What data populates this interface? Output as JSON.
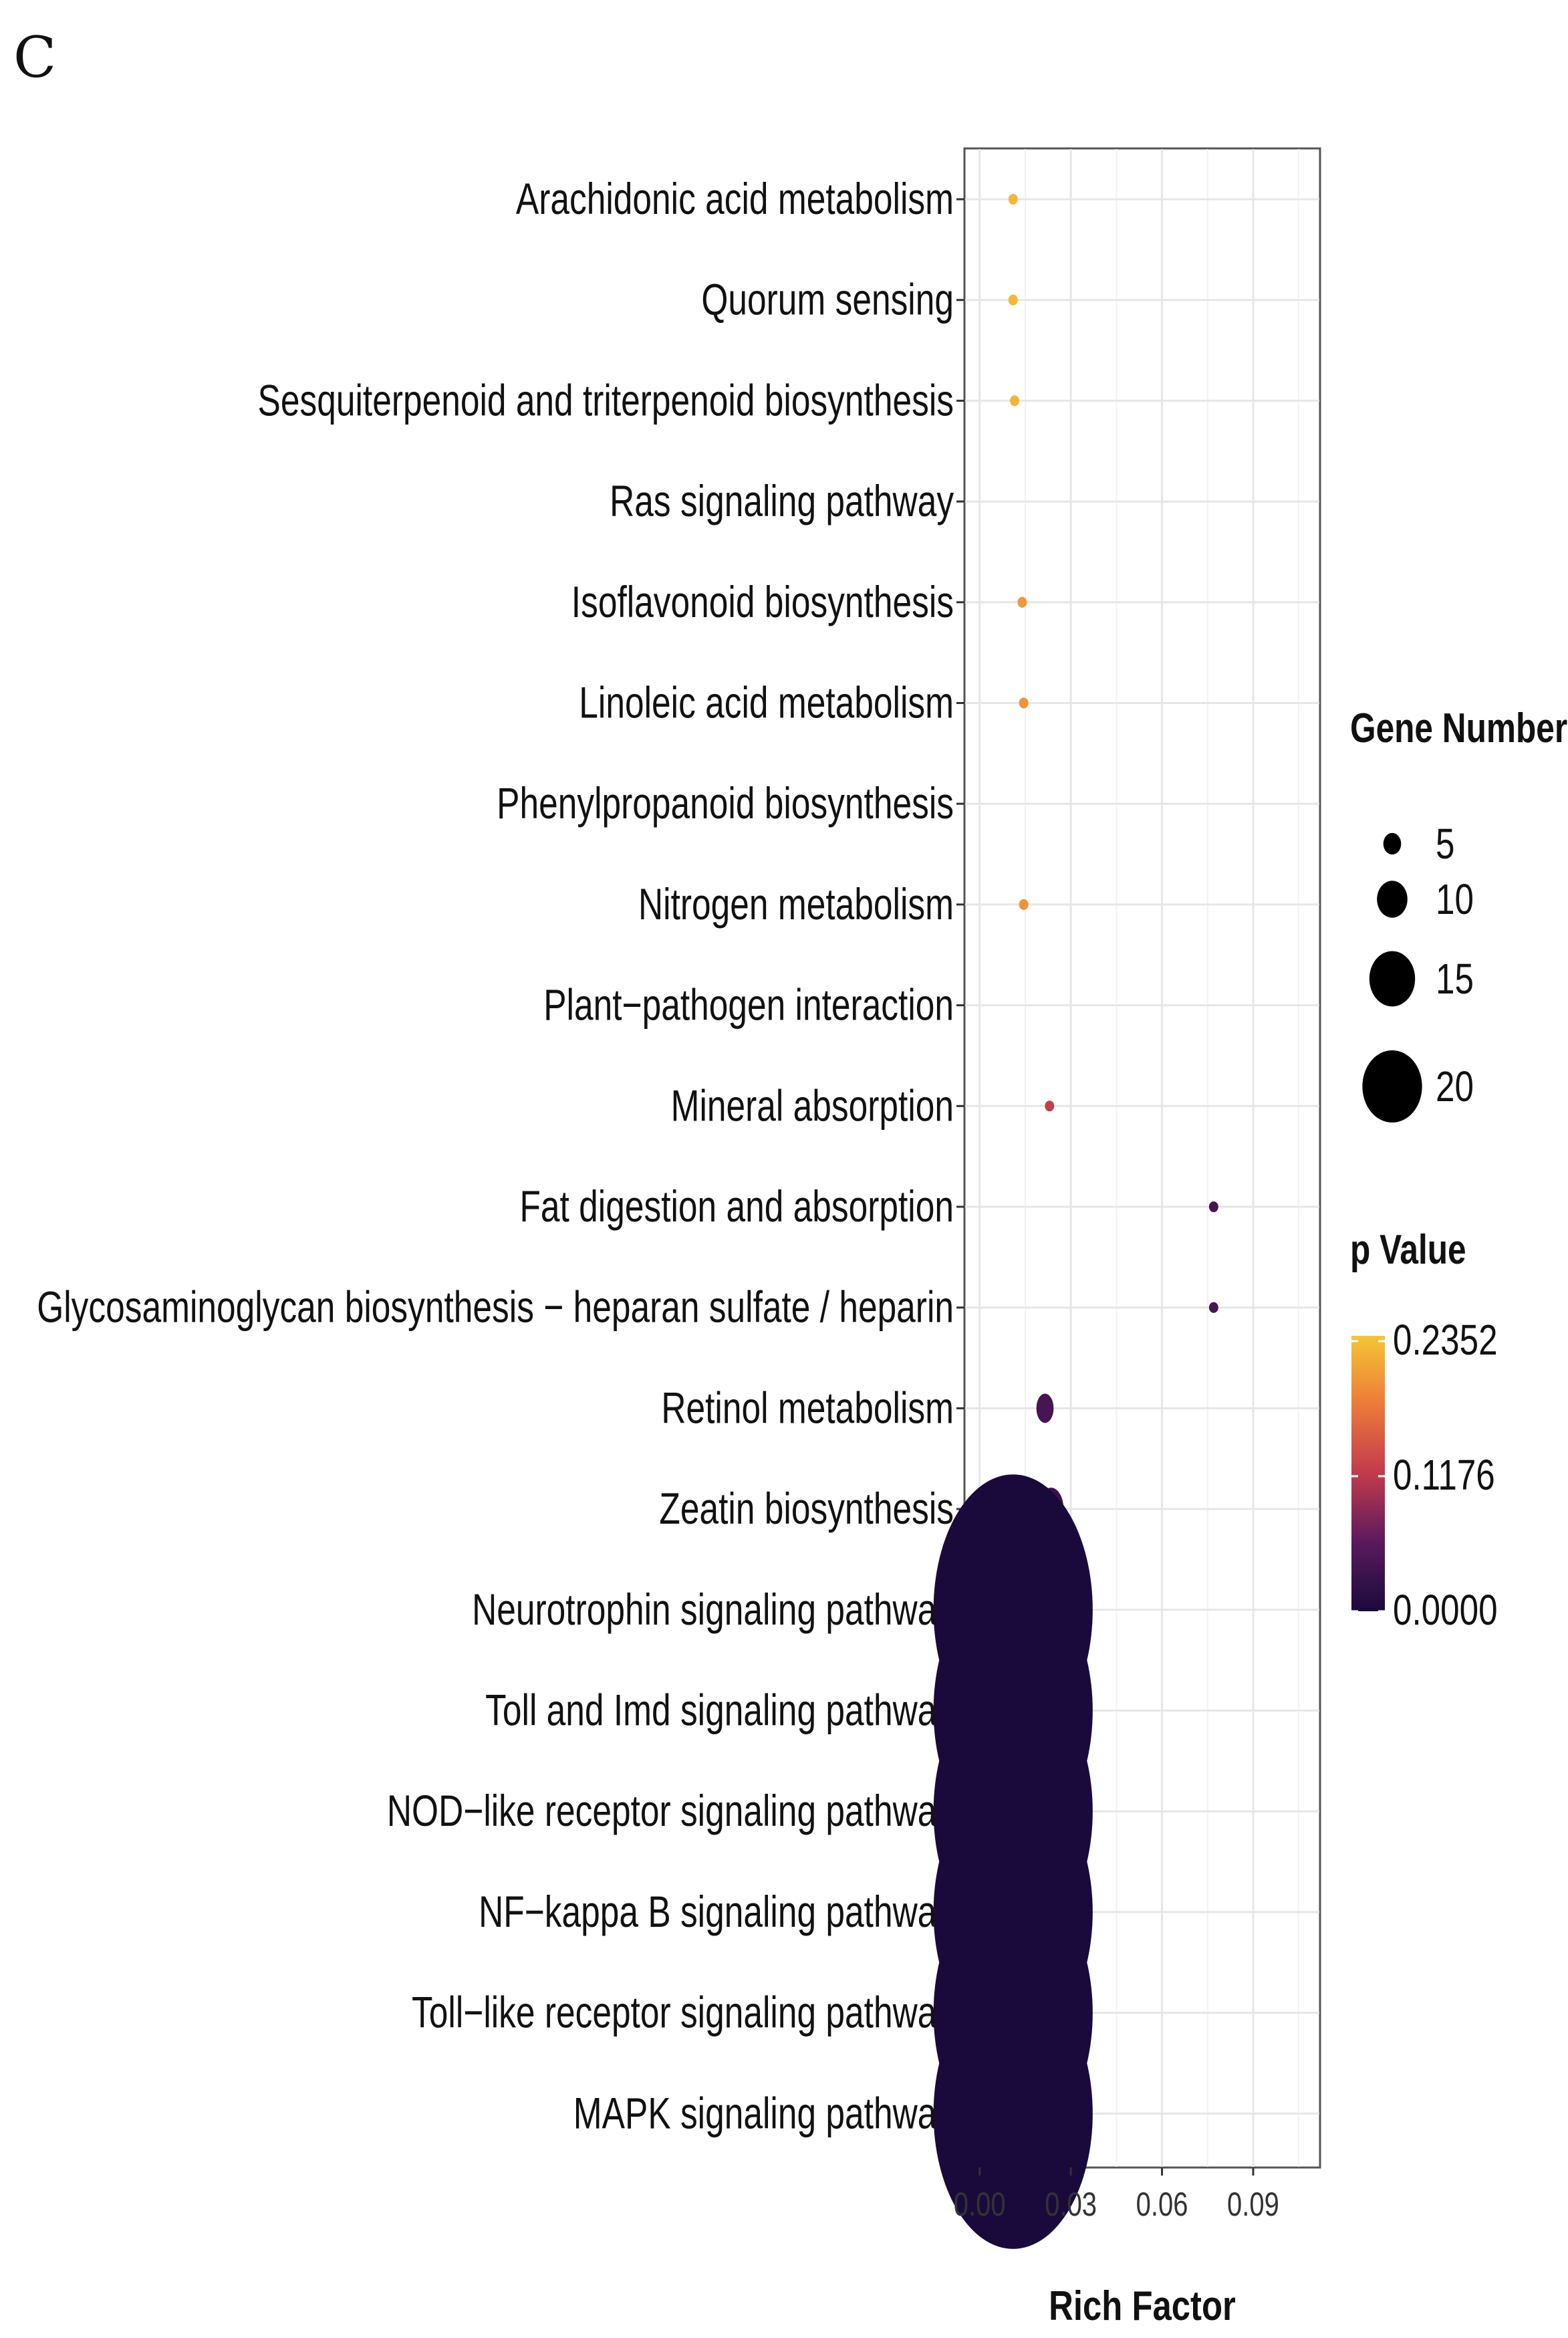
{
  "panel_label": "C",
  "chart_data": {
    "type": "scatter",
    "subtype": "bubble",
    "xlabel": "Rich Factor",
    "xlim": [
      -0.005,
      0.112
    ],
    "xticks": [
      0.0,
      0.03,
      0.06,
      0.09
    ],
    "xtick_labels": [
      "0.00",
      "0.03",
      "0.06",
      "0.09"
    ],
    "grid": true,
    "categories": [
      "Arachidonic acid metabolism",
      "Quorum sensing",
      "Sesquiterpenoid and triterpenoid biosynthesis",
      "Ras signaling pathway",
      "Isoflavonoid biosynthesis",
      "Linoleic acid metabolism",
      "Phenylpropanoid biosynthesis",
      "Nitrogen metabolism",
      "Plant−pathogen interaction",
      "Mineral absorption",
      "Fat digestion and absorption",
      "Glycosaminoglycan biosynthesis − heparan sulfate / heparin",
      "Retinol metabolism",
      "Zeatin biosynthesis",
      "Neurotrophin signaling pathway",
      "Toll and Imd signaling pathway",
      "NOD−like receptor signaling pathway",
      "NF−kappa B signaling pathway",
      "Toll−like receptor signaling pathway",
      "MAPK signaling pathway"
    ],
    "points": [
      {
        "pathway": "Arachidonic acid metabolism",
        "rich_factor": 0.011,
        "gene_number": 1,
        "p_value": 0.225
      },
      {
        "pathway": "Quorum sensing",
        "rich_factor": 0.011,
        "gene_number": 1,
        "p_value": 0.225
      },
      {
        "pathway": "Sesquiterpenoid and triterpenoid biosynthesis",
        "rich_factor": 0.0115,
        "gene_number": 1,
        "p_value": 0.222
      },
      {
        "pathway": "Isoflavonoid biosynthesis",
        "rich_factor": 0.014,
        "gene_number": 1,
        "p_value": 0.2
      },
      {
        "pathway": "Linoleic acid metabolism",
        "rich_factor": 0.0145,
        "gene_number": 1,
        "p_value": 0.197
      },
      {
        "pathway": "Nitrogen metabolism",
        "rich_factor": 0.0145,
        "gene_number": 1,
        "p_value": 0.195
      },
      {
        "pathway": "Mineral absorption",
        "rich_factor": 0.023,
        "gene_number": 1,
        "p_value": 0.12
      },
      {
        "pathway": "Fat digestion and absorption",
        "rich_factor": 0.077,
        "gene_number": 1,
        "p_value": 0.04
      },
      {
        "pathway": "Glycosaminoglycan biosynthesis − heparan sulfate / heparin",
        "rich_factor": 0.077,
        "gene_number": 1,
        "p_value": 0.04
      },
      {
        "pathway": "Retinol metabolism",
        "rich_factor": 0.0215,
        "gene_number": 2,
        "p_value": 0.04
      },
      {
        "pathway": "Zeatin biosynthesis",
        "rich_factor": 0.0235,
        "gene_number": 3,
        "p_value": 0.03
      },
      {
        "pathway": "Neurotrophin signaling pathway",
        "rich_factor": 0.011,
        "gene_number": 20,
        "p_value": 0.0
      },
      {
        "pathway": "Toll and Imd signaling pathway",
        "rich_factor": 0.011,
        "gene_number": 20,
        "p_value": 0.0
      },
      {
        "pathway": "NOD−like receptor signaling pathway",
        "rich_factor": 0.011,
        "gene_number": 20,
        "p_value": 0.0
      },
      {
        "pathway": "NF−kappa B signaling pathway",
        "rich_factor": 0.011,
        "gene_number": 20,
        "p_value": 0.0
      },
      {
        "pathway": "Toll−like receptor signaling pathway",
        "rich_factor": 0.011,
        "gene_number": 20,
        "p_value": 0.0
      },
      {
        "pathway": "MAPK signaling pathway",
        "rich_factor": 0.011,
        "gene_number": 20,
        "p_value": 0.0
      }
    ],
    "size_legend": {
      "title": "Gene Number",
      "values": [
        5,
        10,
        15,
        20
      ],
      "labels": [
        "5",
        "10",
        "15",
        "20"
      ]
    },
    "color_legend": {
      "title": "p Value",
      "min": 0.0,
      "max": 0.2352,
      "labels": [
        "0.2352",
        "0.1176",
        "0.0000"
      ],
      "stops": [
        "#1a0a3c",
        "#5a1a5c",
        "#c23a4e",
        "#ec7a3a",
        "#f6c535"
      ]
    }
  }
}
